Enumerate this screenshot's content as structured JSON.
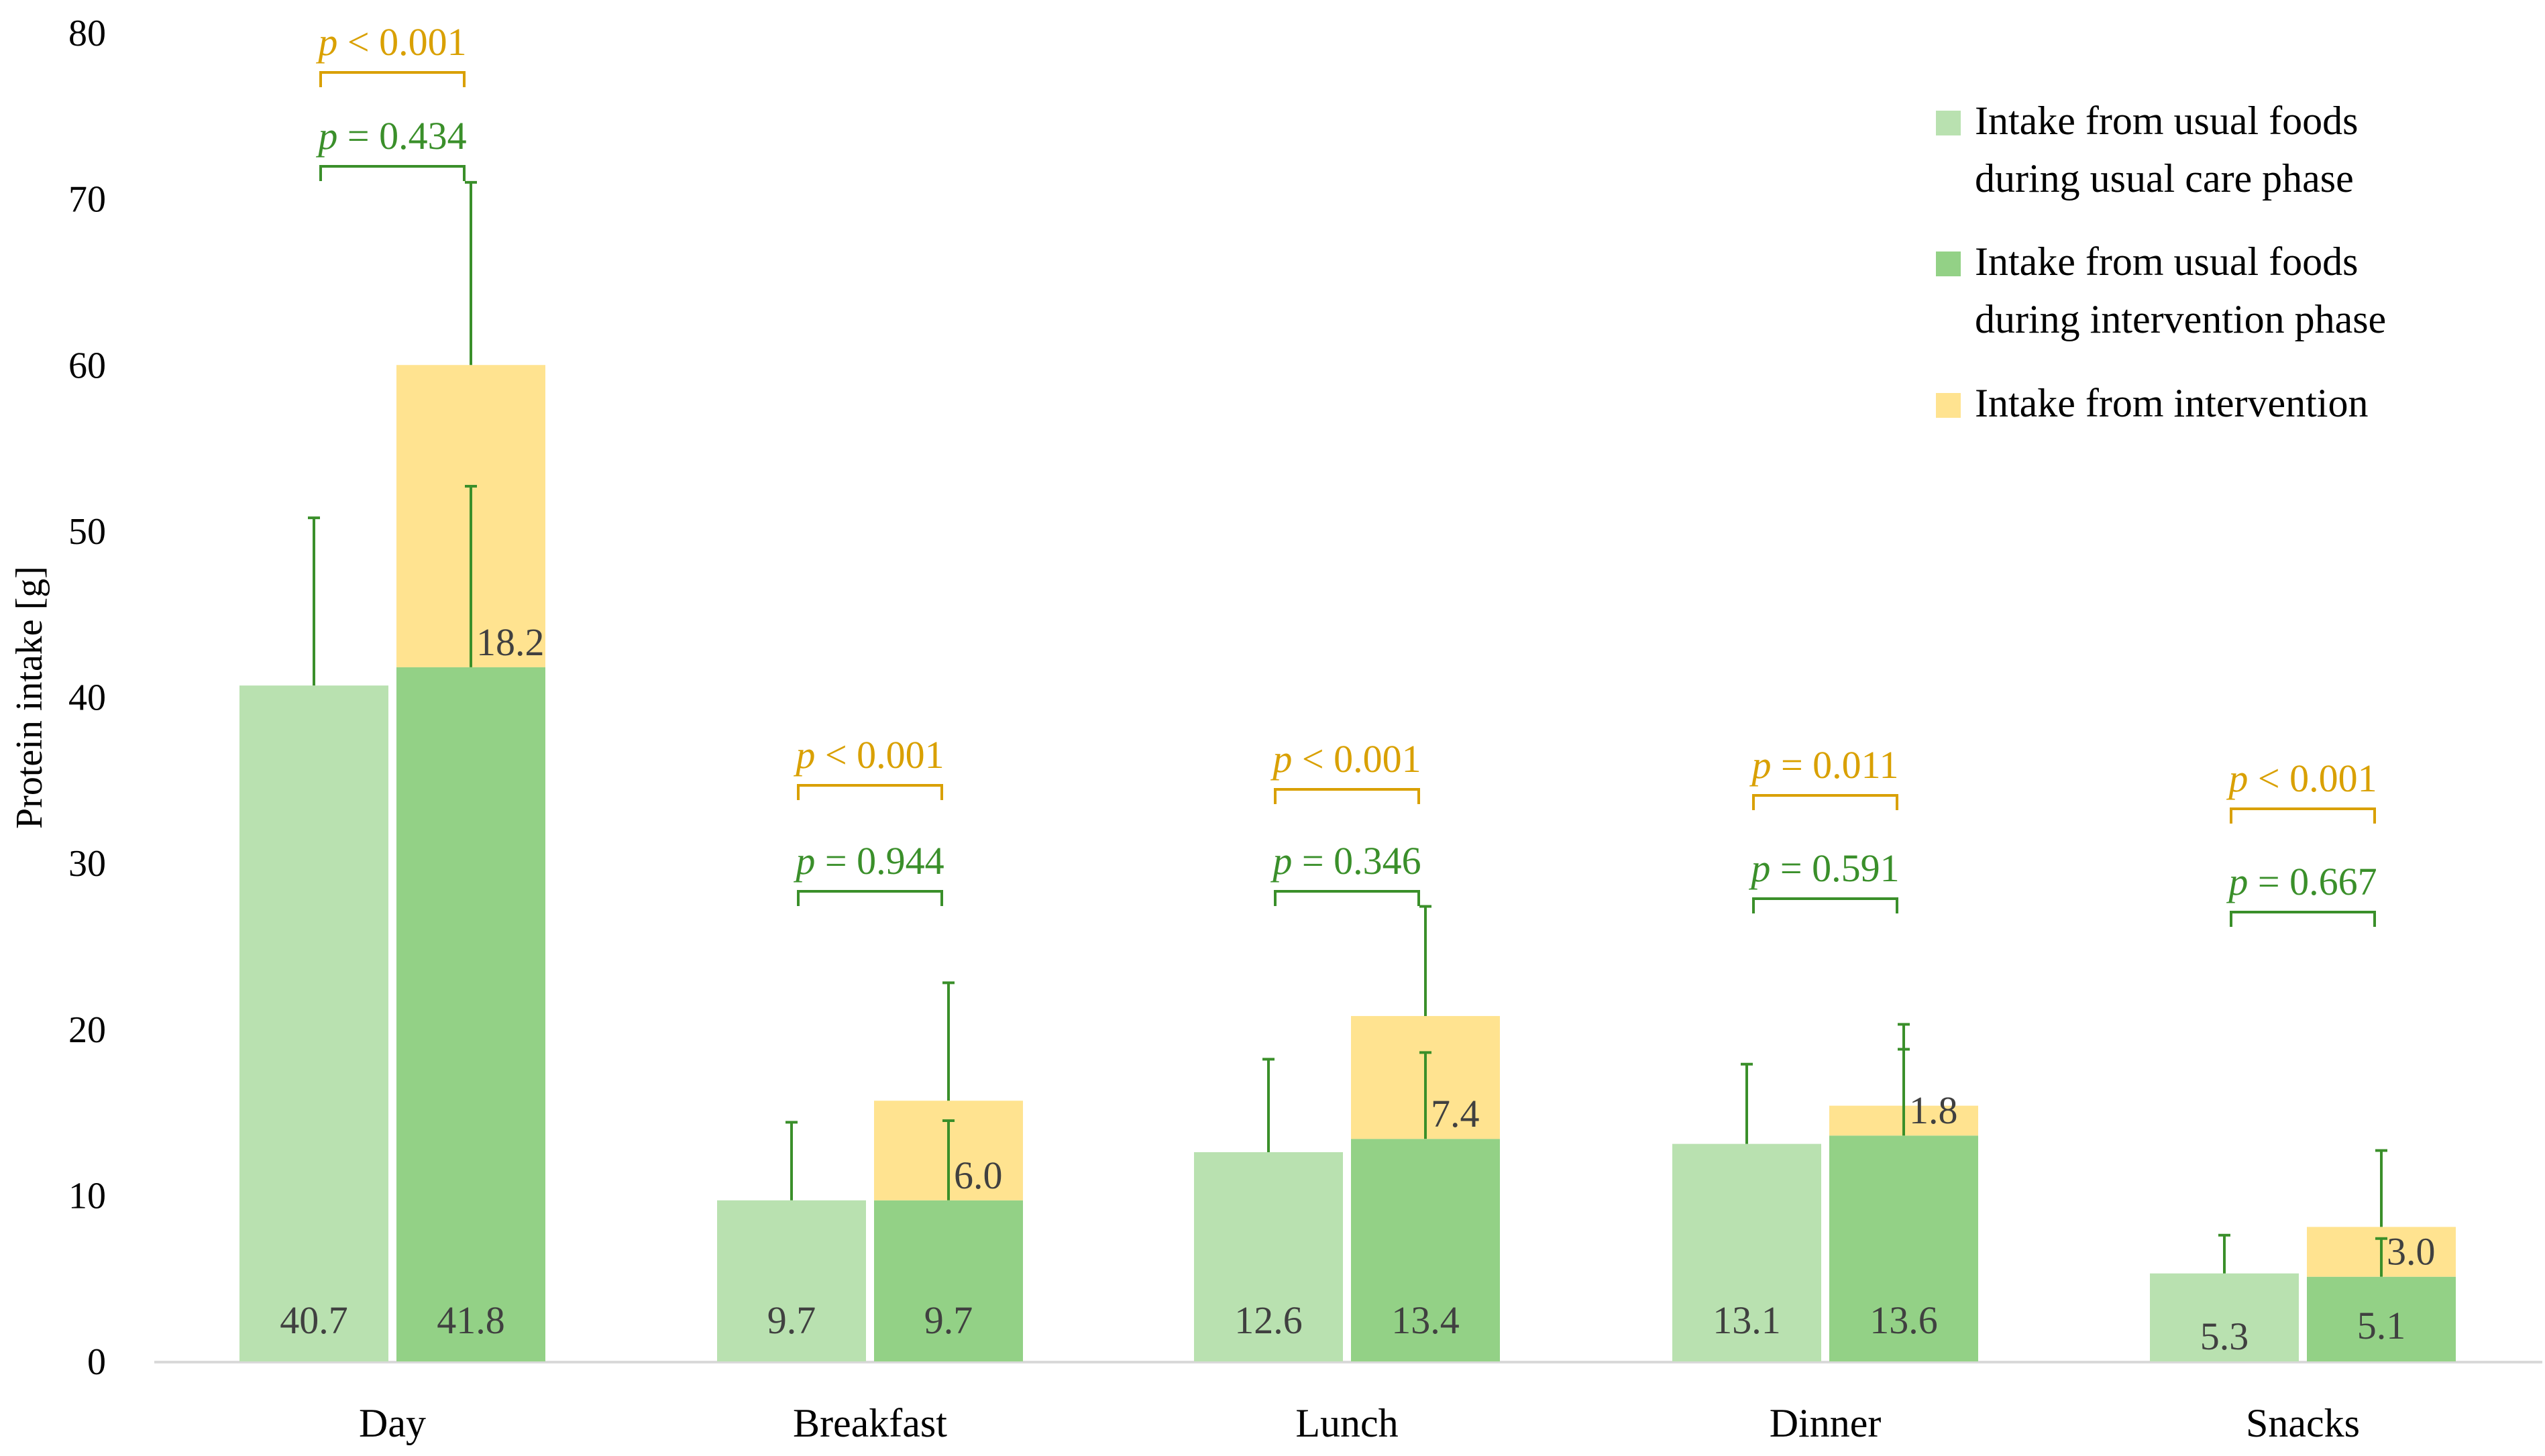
{
  "chart_data": {
    "type": "bar",
    "title": "",
    "xlabel": "",
    "ylabel": "Protein intake [g]",
    "ylim": [
      0,
      80
    ],
    "yticks": [
      "0",
      "10",
      "20",
      "30",
      "40",
      "50",
      "60",
      "70",
      "80"
    ],
    "categories": [
      "Day",
      "Breakfast",
      "Lunch",
      "Dinner",
      "Snacks"
    ],
    "series": [
      {
        "name": "Intake from usual foods during usual care phase",
        "legend_lines": [
          "Intake from usual foods",
          "during usual care phase"
        ],
        "color": "#b9e1b0",
        "stack": "usual_care",
        "values": [
          40.7,
          9.7,
          12.6,
          13.1,
          5.3
        ],
        "labels": [
          "40.7",
          "9.7",
          "12.6",
          "13.1",
          "5.3"
        ],
        "error_upper": [
          50.8,
          14.4,
          18.2,
          17.9,
          7.6
        ]
      },
      {
        "name": "Intake from usual foods during intervention phase",
        "legend_lines": [
          "Intake from usual foods",
          "during intervention phase"
        ],
        "color": "#93d186",
        "stack": "intervention",
        "values": [
          41.8,
          9.7,
          13.4,
          13.6,
          5.1
        ],
        "labels": [
          "41.8",
          "9.7",
          "13.4",
          "13.6",
          "5.1"
        ],
        "error_upper": [
          52.7,
          14.5,
          18.6,
          18.8,
          7.4
        ]
      },
      {
        "name": "Intake from intervention",
        "legend_lines": [
          "Intake from intervention"
        ],
        "color": "#ffe390",
        "stack": "intervention",
        "values": [
          18.2,
          6.0,
          7.4,
          1.8,
          3.0
        ],
        "labels": [
          "18.2",
          "6.0",
          "7.4",
          "1.8",
          "3.0"
        ],
        "error_upper": [
          71.0,
          22.8,
          27.4,
          20.3,
          12.7
        ]
      }
    ],
    "pvalues": {
      "usual_foods": [
        "= 0.434",
        "= 0.944",
        "= 0.346",
        "= 0.591",
        "= 0.667"
      ],
      "total_intake": [
        "< 0.001",
        "< 0.001",
        "< 0.001",
        "= 0.011",
        "< 0.001"
      ],
      "p_symbol": "p",
      "usual_foods_color": "#3a8f2a",
      "total_intake_color": "#d9a000"
    },
    "grid": false,
    "legend_position": "top-right"
  },
  "colors": {
    "axis": "#d9d9d9",
    "text": "#404040",
    "error_bar": "#3a8f2a"
  }
}
